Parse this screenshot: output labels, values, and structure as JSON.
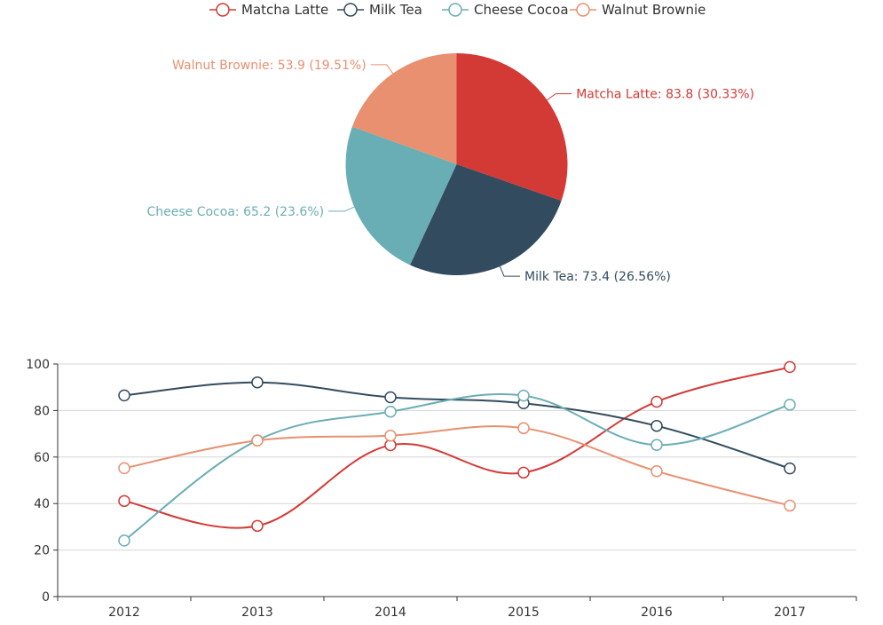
{
  "chart_data": [
    {
      "type": "pie",
      "slices": [
        {
          "name": "Matcha Latte",
          "value": 83.8,
          "percent": "30.33%",
          "color": "#d33a36"
        },
        {
          "name": "Milk Tea",
          "value": 73.4,
          "percent": "26.56%",
          "color": "#334b5e"
        },
        {
          "name": "Cheese Cocoa",
          "value": 65.2,
          "percent": "23.6%",
          "color": "#6aaeb5"
        },
        {
          "name": "Walnut Brownie",
          "value": 53.9,
          "percent": "19.51%",
          "color": "#e89070"
        }
      ],
      "labels": [
        "Matcha Latte: 83.8 (30.33%)",
        "Milk Tea: 73.4 (26.56%)",
        "Cheese Cocoa: 65.2 (23.6%)",
        "Walnut Brownie: 53.9 (19.51%)"
      ]
    },
    {
      "type": "line",
      "categories": [
        "2012",
        "2013",
        "2014",
        "2015",
        "2016",
        "2017"
      ],
      "series": [
        {
          "name": "Matcha Latte",
          "color": "#d33a36",
          "values": [
            41.1,
            30.4,
            65.1,
            53.3,
            83.8,
            98.7
          ]
        },
        {
          "name": "Milk Tea",
          "color": "#334b5e",
          "values": [
            86.5,
            92.1,
            85.7,
            83.1,
            73.4,
            55.1
          ]
        },
        {
          "name": "Cheese Cocoa",
          "color": "#6aaeb5",
          "values": [
            24.1,
            67.2,
            79.5,
            86.4,
            65.2,
            82.5
          ]
        },
        {
          "name": "Walnut Brownie",
          "color": "#e89070",
          "values": [
            55.2,
            67.1,
            69.2,
            72.4,
            53.9,
            39.1
          ]
        }
      ],
      "ylim": [
        0,
        100
      ],
      "yticks": [
        0,
        20,
        40,
        60,
        80,
        100
      ],
      "grid": true,
      "smooth": true
    }
  ],
  "legend": {
    "placement": "top-center",
    "items": [
      "Matcha Latte",
      "Milk Tea",
      "Cheese Cocoa",
      "Walnut Brownie"
    ]
  }
}
